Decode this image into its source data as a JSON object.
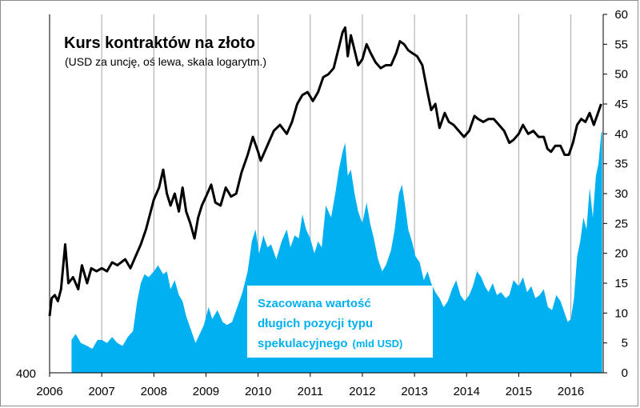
{
  "chart_data": {
    "type": "line+area",
    "title": "Kurs kontraktów na złoto",
    "subtitle": "(USD za uncję, oś lewa, skala logarytm.)",
    "annotation": {
      "lines": [
        "Szacowana wartość",
        "długich pozycji typu",
        "spekulacyjnego"
      ],
      "unit": "(mld USD)"
    },
    "x_axis": {
      "ticks": [
        "2006",
        "2007",
        "2008",
        "2009",
        "2010",
        "2011",
        "2012",
        "2013",
        "2014",
        "2015",
        "2016"
      ],
      "range": [
        2006.0,
        2016.62
      ]
    },
    "y_left": {
      "visible_tick": "400",
      "scale": "log"
    },
    "y_right": {
      "ticks": [
        "0",
        "5",
        "10",
        "15",
        "20",
        "25",
        "30",
        "35",
        "40",
        "45",
        "50",
        "55",
        "60"
      ],
      "range": [
        0,
        60
      ]
    },
    "grid": "vertical-at-years",
    "colors": {
      "line": "#000000",
      "area": "#00b0f0",
      "grid": "#a6a6a6",
      "annotation": "#00b0f0"
    },
    "series": [
      {
        "type": "line",
        "axis": "right-equivalent",
        "points": [
          [
            2006.0,
            9.5
          ],
          [
            2006.04,
            12.5
          ],
          [
            2006.1,
            13.0
          ],
          [
            2006.16,
            12.0
          ],
          [
            2006.22,
            14.0
          ],
          [
            2006.3,
            21.5
          ],
          [
            2006.36,
            15.0
          ],
          [
            2006.45,
            16.0
          ],
          [
            2006.55,
            14.0
          ],
          [
            2006.62,
            18.0
          ],
          [
            2006.72,
            15.0
          ],
          [
            2006.8,
            17.5
          ],
          [
            2006.9,
            17.0
          ],
          [
            2007.0,
            17.5
          ],
          [
            2007.1,
            17.0
          ],
          [
            2007.2,
            18.5
          ],
          [
            2007.3,
            18.0
          ],
          [
            2007.45,
            19.0
          ],
          [
            2007.55,
            17.5
          ],
          [
            2007.65,
            19.5
          ],
          [
            2007.75,
            21.5
          ],
          [
            2007.85,
            24.0
          ],
          [
            2008.0,
            29.0
          ],
          [
            2008.1,
            31.0
          ],
          [
            2008.18,
            34.0
          ],
          [
            2008.25,
            30.0
          ],
          [
            2008.32,
            28.0
          ],
          [
            2008.4,
            30.0
          ],
          [
            2008.48,
            27.0
          ],
          [
            2008.55,
            31.0
          ],
          [
            2008.62,
            27.0
          ],
          [
            2008.7,
            25.0
          ],
          [
            2008.78,
            22.5
          ],
          [
            2008.85,
            26.0
          ],
          [
            2008.92,
            28.0
          ],
          [
            2009.0,
            29.5
          ],
          [
            2009.1,
            31.5
          ],
          [
            2009.18,
            28.5
          ],
          [
            2009.28,
            28.0
          ],
          [
            2009.38,
            31.0
          ],
          [
            2009.48,
            29.5
          ],
          [
            2009.58,
            30.0
          ],
          [
            2009.68,
            33.5
          ],
          [
            2009.8,
            36.5
          ],
          [
            2009.9,
            39.5
          ],
          [
            2010.0,
            37.0
          ],
          [
            2010.05,
            35.5
          ],
          [
            2010.15,
            37.5
          ],
          [
            2010.3,
            40.5
          ],
          [
            2010.42,
            41.5
          ],
          [
            2010.55,
            40.0
          ],
          [
            2010.65,
            42.0
          ],
          [
            2010.75,
            45.0
          ],
          [
            2010.85,
            46.5
          ],
          [
            2010.95,
            47.0
          ],
          [
            2011.05,
            45.5
          ],
          [
            2011.15,
            47.0
          ],
          [
            2011.25,
            49.5
          ],
          [
            2011.35,
            50.0
          ],
          [
            2011.45,
            51.0
          ],
          [
            2011.55,
            54.5
          ],
          [
            2011.62,
            57.0
          ],
          [
            2011.67,
            57.8
          ],
          [
            2011.72,
            53.0
          ],
          [
            2011.78,
            56.5
          ],
          [
            2011.85,
            54.0
          ],
          [
            2011.92,
            51.5
          ],
          [
            2012.0,
            52.5
          ],
          [
            2012.08,
            55.0
          ],
          [
            2012.16,
            53.5
          ],
          [
            2012.25,
            52.0
          ],
          [
            2012.35,
            51.0
          ],
          [
            2012.45,
            51.5
          ],
          [
            2012.55,
            51.5
          ],
          [
            2012.65,
            53.5
          ],
          [
            2012.72,
            55.5
          ],
          [
            2012.8,
            55.0
          ],
          [
            2012.88,
            54.0
          ],
          [
            2012.96,
            53.5
          ],
          [
            2013.05,
            53.0
          ],
          [
            2013.15,
            51.5
          ],
          [
            2013.25,
            47.0
          ],
          [
            2013.32,
            44.0
          ],
          [
            2013.4,
            45.0
          ],
          [
            2013.48,
            41.0
          ],
          [
            2013.58,
            43.5
          ],
          [
            2013.66,
            42.0
          ],
          [
            2013.75,
            41.5
          ],
          [
            2013.85,
            40.5
          ],
          [
            2013.95,
            39.5
          ],
          [
            2014.05,
            40.5
          ],
          [
            2014.15,
            43.0
          ],
          [
            2014.22,
            42.5
          ],
          [
            2014.32,
            42.0
          ],
          [
            2014.42,
            42.5
          ],
          [
            2014.52,
            42.5
          ],
          [
            2014.62,
            41.5
          ],
          [
            2014.72,
            40.5
          ],
          [
            2014.82,
            38.5
          ],
          [
            2014.9,
            39.0
          ],
          [
            2015.0,
            40.0
          ],
          [
            2015.08,
            41.5
          ],
          [
            2015.18,
            40.0
          ],
          [
            2015.28,
            40.5
          ],
          [
            2015.38,
            39.5
          ],
          [
            2015.48,
            39.5
          ],
          [
            2015.55,
            37.5
          ],
          [
            2015.62,
            37.0
          ],
          [
            2015.7,
            38.0
          ],
          [
            2015.8,
            38.0
          ],
          [
            2015.88,
            36.5
          ],
          [
            2015.96,
            36.5
          ],
          [
            2016.04,
            38.5
          ],
          [
            2016.12,
            41.5
          ],
          [
            2016.2,
            42.5
          ],
          [
            2016.28,
            42.0
          ],
          [
            2016.36,
            43.5
          ],
          [
            2016.44,
            41.5
          ],
          [
            2016.52,
            43.5
          ],
          [
            2016.58,
            45.0
          ]
        ]
      },
      {
        "type": "area",
        "axis": "right",
        "name": "Szacowana wartość długich pozycji typu spekulacyjnego (mld USD)",
        "points": [
          [
            2006.42,
            0.0
          ],
          [
            2006.42,
            5.5
          ],
          [
            2006.5,
            6.5
          ],
          [
            2006.6,
            5.0
          ],
          [
            2006.72,
            4.5
          ],
          [
            2006.82,
            4.0
          ],
          [
            2006.92,
            5.5
          ],
          [
            2007.0,
            5.5
          ],
          [
            2007.1,
            5.0
          ],
          [
            2007.2,
            6.0
          ],
          [
            2007.3,
            5.0
          ],
          [
            2007.4,
            4.5
          ],
          [
            2007.5,
            6.0
          ],
          [
            2007.6,
            7.0
          ],
          [
            2007.68,
            12.0
          ],
          [
            2007.75,
            15.0
          ],
          [
            2007.82,
            16.5
          ],
          [
            2007.9,
            16.0
          ],
          [
            2008.0,
            17.0
          ],
          [
            2008.08,
            18.0
          ],
          [
            2008.18,
            16.5
          ],
          [
            2008.25,
            17.0
          ],
          [
            2008.32,
            14.0
          ],
          [
            2008.4,
            15.5
          ],
          [
            2008.48,
            13.0
          ],
          [
            2008.55,
            12.0
          ],
          [
            2008.62,
            9.5
          ],
          [
            2008.72,
            7.0
          ],
          [
            2008.8,
            5.0
          ],
          [
            2008.88,
            6.5
          ],
          [
            2008.96,
            8.0
          ],
          [
            2009.05,
            11.0
          ],
          [
            2009.12,
            9.0
          ],
          [
            2009.22,
            10.5
          ],
          [
            2009.32,
            8.5
          ],
          [
            2009.4,
            8.0
          ],
          [
            2009.5,
            8.5
          ],
          [
            2009.6,
            11.0
          ],
          [
            2009.7,
            13.5
          ],
          [
            2009.8,
            17.0
          ],
          [
            2009.88,
            22.0
          ],
          [
            2009.95,
            24.0
          ],
          [
            2010.02,
            20.0
          ],
          [
            2010.1,
            23.0
          ],
          [
            2010.18,
            21.0
          ],
          [
            2010.25,
            21.5
          ],
          [
            2010.35,
            19.0
          ],
          [
            2010.45,
            22.0
          ],
          [
            2010.55,
            24.0
          ],
          [
            2010.62,
            21.0
          ],
          [
            2010.7,
            23.0
          ],
          [
            2010.78,
            22.5
          ],
          [
            2010.85,
            26.5
          ],
          [
            2010.92,
            24.0
          ],
          [
            2011.0,
            22.5
          ],
          [
            2011.08,
            20.0
          ],
          [
            2011.15,
            22.0
          ],
          [
            2011.22,
            21.0
          ],
          [
            2011.3,
            28.0
          ],
          [
            2011.4,
            26.0
          ],
          [
            2011.48,
            30.0
          ],
          [
            2011.55,
            34.0
          ],
          [
            2011.62,
            37.0
          ],
          [
            2011.67,
            38.5
          ],
          [
            2011.72,
            33.0
          ],
          [
            2011.78,
            34.0
          ],
          [
            2011.85,
            30.0
          ],
          [
            2011.92,
            27.0
          ],
          [
            2012.0,
            25.0
          ],
          [
            2012.08,
            28.5
          ],
          [
            2012.15,
            25.0
          ],
          [
            2012.22,
            22.5
          ],
          [
            2012.3,
            19.0
          ],
          [
            2012.38,
            17.0
          ],
          [
            2012.45,
            18.0
          ],
          [
            2012.55,
            20.5
          ],
          [
            2012.62,
            24.0
          ],
          [
            2012.7,
            30.0
          ],
          [
            2012.76,
            31.5
          ],
          [
            2012.82,
            28.0
          ],
          [
            2012.88,
            24.0
          ],
          [
            2012.95,
            22.0
          ],
          [
            2013.02,
            19.5
          ],
          [
            2013.1,
            18.5
          ],
          [
            2013.18,
            15.5
          ],
          [
            2013.25,
            17.0
          ],
          [
            2013.32,
            15.0
          ],
          [
            2013.4,
            13.5
          ],
          [
            2013.48,
            12.5
          ],
          [
            2013.56,
            11.0
          ],
          [
            2013.64,
            12.0
          ],
          [
            2013.72,
            14.0
          ],
          [
            2013.8,
            15.5
          ],
          [
            2013.88,
            13.0
          ],
          [
            2013.96,
            12.0
          ],
          [
            2014.05,
            13.0
          ],
          [
            2014.12,
            14.5
          ],
          [
            2014.2,
            17.0
          ],
          [
            2014.28,
            16.0
          ],
          [
            2014.35,
            14.5
          ],
          [
            2014.42,
            13.5
          ],
          [
            2014.5,
            15.0
          ],
          [
            2014.58,
            13.0
          ],
          [
            2014.66,
            13.5
          ],
          [
            2014.75,
            12.5
          ],
          [
            2014.82,
            13.0
          ],
          [
            2014.9,
            15.5
          ],
          [
            2015.0,
            14.5
          ],
          [
            2015.08,
            16.0
          ],
          [
            2015.16,
            13.5
          ],
          [
            2015.24,
            14.5
          ],
          [
            2015.32,
            12.5
          ],
          [
            2015.4,
            13.0
          ],
          [
            2015.48,
            14.0
          ],
          [
            2015.56,
            11.0
          ],
          [
            2015.64,
            10.5
          ],
          [
            2015.72,
            13.0
          ],
          [
            2015.8,
            12.0
          ],
          [
            2015.88,
            10.0
          ],
          [
            2015.94,
            8.5
          ],
          [
            2016.0,
            9.0
          ],
          [
            2016.06,
            12.5
          ],
          [
            2016.12,
            19.5
          ],
          [
            2016.18,
            22.0
          ],
          [
            2016.24,
            26.0
          ],
          [
            2016.3,
            24.0
          ],
          [
            2016.36,
            31.0
          ],
          [
            2016.42,
            26.0
          ],
          [
            2016.48,
            33.0
          ],
          [
            2016.53,
            35.0
          ],
          [
            2016.58,
            40.0
          ],
          [
            2016.6,
            40.5
          ],
          [
            2016.6,
            0.0
          ]
        ]
      }
    ]
  }
}
